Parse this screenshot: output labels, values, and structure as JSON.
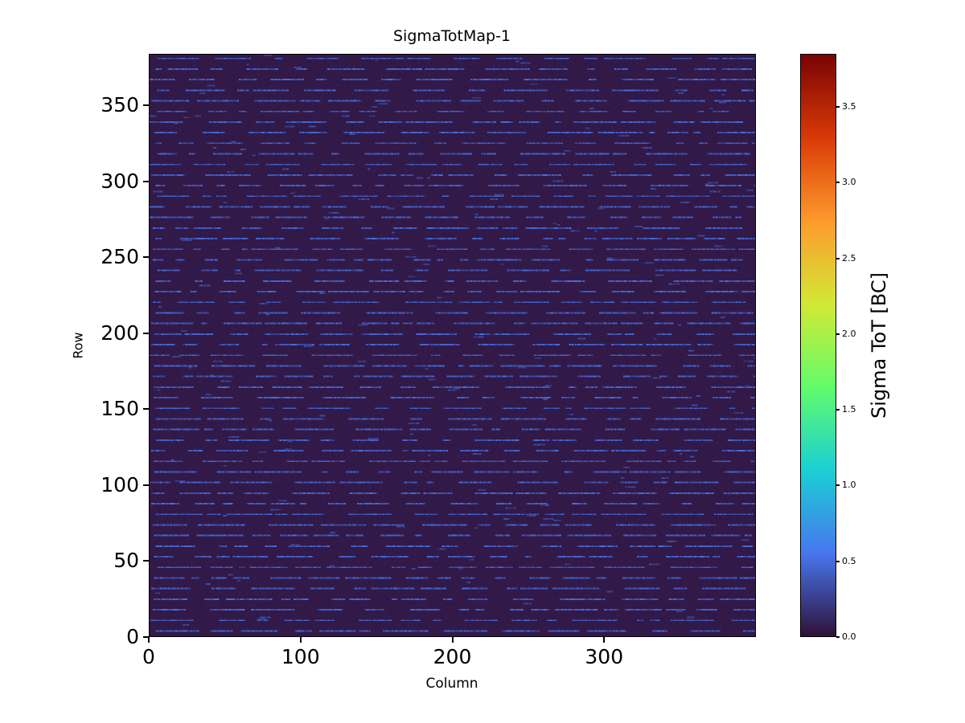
{
  "figure": {
    "background_color": "#ffffff",
    "text_color": "#000000"
  },
  "chart_data": {
    "type": "heatmap",
    "title": "SigmaTotMap-1",
    "xlabel": "Column",
    "ylabel": "Row",
    "x_min": 0,
    "x_max": 400,
    "y_min": 0,
    "y_max": 384,
    "x_tick_values": [
      0,
      100,
      200,
      300
    ],
    "x_tick_labels": [
      "0",
      "100",
      "200",
      "300"
    ],
    "y_tick_values": [
      0,
      50,
      100,
      150,
      200,
      250,
      300,
      350
    ],
    "y_tick_labels": [
      "0",
      "50",
      "100",
      "150",
      "200",
      "250",
      "300",
      "350"
    ],
    "grid": false,
    "legend": "none",
    "colorbar": {
      "label": "Sigma ToT [BC]",
      "tick_values": [
        0.0,
        0.5,
        1.0,
        1.5,
        2.0,
        2.5,
        3.0,
        3.5
      ],
      "tick_labels": [
        "0.0",
        "0.5",
        "1.0",
        "1.5",
        "2.0",
        "2.5",
        "3.0",
        "3.5"
      ],
      "vmin": 0.0,
      "vmax": 3.85,
      "colormap": "turbo",
      "stops": [
        "#30123b",
        "#4777ef",
        "#1bd0d5",
        "#62fc6b",
        "#d2e935",
        "#fe9b2d",
        "#db3a07",
        "#7a0403"
      ]
    },
    "pattern": {
      "description": "Pixel map is mostly near-zero (dark purple) with dashed horizontal stripes of slightly elevated Sigma ToT (~0.2-0.5 BC) recurring every ~7 rows across all 400 columns",
      "background_value": 0.04,
      "stripe_value_min": 0.22,
      "stripe_value_max": 0.52,
      "stripe_period_rows": 7,
      "stripe_phase": 3,
      "sparse_noise_probability": 0.0015,
      "seed": 42
    }
  }
}
